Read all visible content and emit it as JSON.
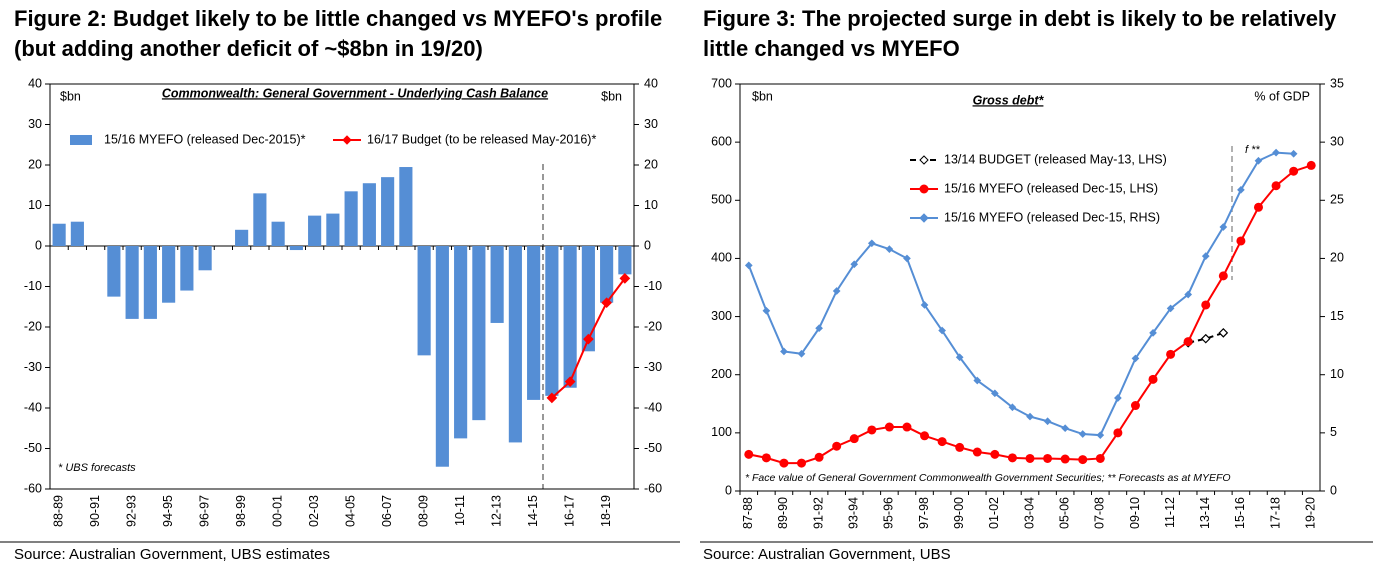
{
  "chart_data": [
    {
      "type": "bar",
      "title": "Figure 2: Budget likely to be little changed vs MYEFO's profile (but adding another deficit of ~$8bn in 19/20)",
      "subtitle": "Commonwealth: General Government - Underlying Cash Balance",
      "y_label": "$bn",
      "y2_label": "$bn",
      "annotation": "* UBS forecasts",
      "source": "Source:  Australian Government, UBS estimates",
      "categories": [
        "88-89",
        null,
        "90-91",
        null,
        "92-93",
        null,
        "94-95",
        null,
        "96-97",
        null,
        "98-99",
        null,
        "00-01",
        null,
        "02-03",
        null,
        "04-05",
        null,
        "06-07",
        null,
        "08-09",
        null,
        "10-11",
        null,
        "12-13",
        null,
        "14-15",
        null,
        "16-17",
        null,
        "18-19",
        null
      ],
      "series": [
        {
          "name": "15/16 MYEFO (released Dec-2015)*",
          "type": "bar",
          "color": "#558ed5",
          "values": [
            5.5,
            6,
            0,
            -12.5,
            -18,
            -18,
            -14,
            -11,
            -6,
            0,
            4,
            13,
            6,
            -1,
            7.5,
            8,
            13.5,
            15.5,
            17,
            19.5,
            -27,
            -54.5,
            -47.5,
            -43,
            -19,
            -48.5,
            -38,
            -37,
            -35,
            -26,
            -14,
            -7
          ]
        },
        {
          "name": "16/17 Budget (to be released May-2016)*",
          "type": "line",
          "color": "#ff0000",
          "values": [
            null,
            null,
            null,
            null,
            null,
            null,
            null,
            null,
            null,
            null,
            null,
            null,
            null,
            null,
            null,
            null,
            null,
            null,
            null,
            null,
            null,
            null,
            null,
            null,
            null,
            null,
            null,
            -37.5,
            -33.5,
            -23,
            -14,
            -8
          ]
        }
      ],
      "ylim": [
        -60,
        40
      ],
      "yticks": [
        -60,
        -50,
        -40,
        -30,
        -20,
        -10,
        0,
        10,
        20,
        30,
        40
      ],
      "y2lim": [
        -60,
        40
      ],
      "y2ticks": [
        -60,
        -50,
        -40,
        -30,
        -20,
        -10,
        0,
        10,
        20,
        30,
        40
      ]
    },
    {
      "type": "line",
      "title": "Figure 3: The projected surge in debt is likely to be relatively little changed vs MYEFO",
      "subtitle": "Gross debt*",
      "y_label": "$bn",
      "y2_label": "% of GDP",
      "annotation": "f **",
      "footnote": "* Face value of General Government Commonwealth Government Securities; ** Forecasts as at MYEFO",
      "source": "Source:  Australian Government, UBS",
      "categories": [
        "87-88",
        null,
        "89-90",
        null,
        "91-92",
        null,
        "93-94",
        null,
        "95-96",
        null,
        "97-98",
        null,
        "99-00",
        null,
        "01-02",
        null,
        "03-04",
        null,
        "05-06",
        null,
        "07-08",
        null,
        "09-10",
        null,
        "11-12",
        null,
        "13-14",
        null,
        "15-16",
        null,
        "17-18",
        null,
        "19-20"
      ],
      "series": [
        {
          "name": "13/14 BUDGET (released May-13, LHS)",
          "color": "#000000",
          "marker": "open-diamond",
          "dashed": true,
          "values": [
            null,
            null,
            null,
            null,
            null,
            null,
            null,
            null,
            null,
            null,
            null,
            null,
            null,
            null,
            null,
            null,
            null,
            null,
            null,
            null,
            null,
            null,
            null,
            null,
            null,
            255,
            262,
            272,
            null,
            null,
            null,
            null,
            null
          ]
        },
        {
          "name": "15/16 MYEFO (released Dec-15, LHS)",
          "color": "#ff0000",
          "marker": "circle",
          "values": [
            63,
            57,
            48,
            48,
            58,
            77,
            90,
            105,
            110,
            110,
            95,
            85,
            75,
            67,
            63,
            57,
            56,
            56,
            55,
            54,
            56,
            100,
            147,
            192,
            235,
            257,
            320,
            370,
            430,
            488,
            525,
            550,
            560
          ]
        },
        {
          "name": "15/16 MYEFO (released Dec-15, RHS)",
          "color": "#558ed5",
          "marker": "diamond",
          "axis": "y2",
          "values": [
            19.4,
            15.5,
            12,
            11.8,
            14,
            17.2,
            19.5,
            21.3,
            20.8,
            20,
            16,
            13.8,
            11.5,
            9.5,
            8.4,
            7.2,
            6.4,
            6,
            5.4,
            4.9,
            4.8,
            8,
            11.4,
            13.6,
            15.7,
            16.9,
            20.2,
            22.7,
            25.9,
            28.4,
            29.1,
            29,
            null
          ]
        }
      ],
      "ylim": [
        0,
        700
      ],
      "yticks": [
        0,
        100,
        200,
        300,
        400,
        500,
        600,
        700
      ],
      "y2lim": [
        0,
        35
      ],
      "y2ticks": [
        0,
        5,
        10,
        15,
        20,
        25,
        30,
        35
      ]
    }
  ]
}
